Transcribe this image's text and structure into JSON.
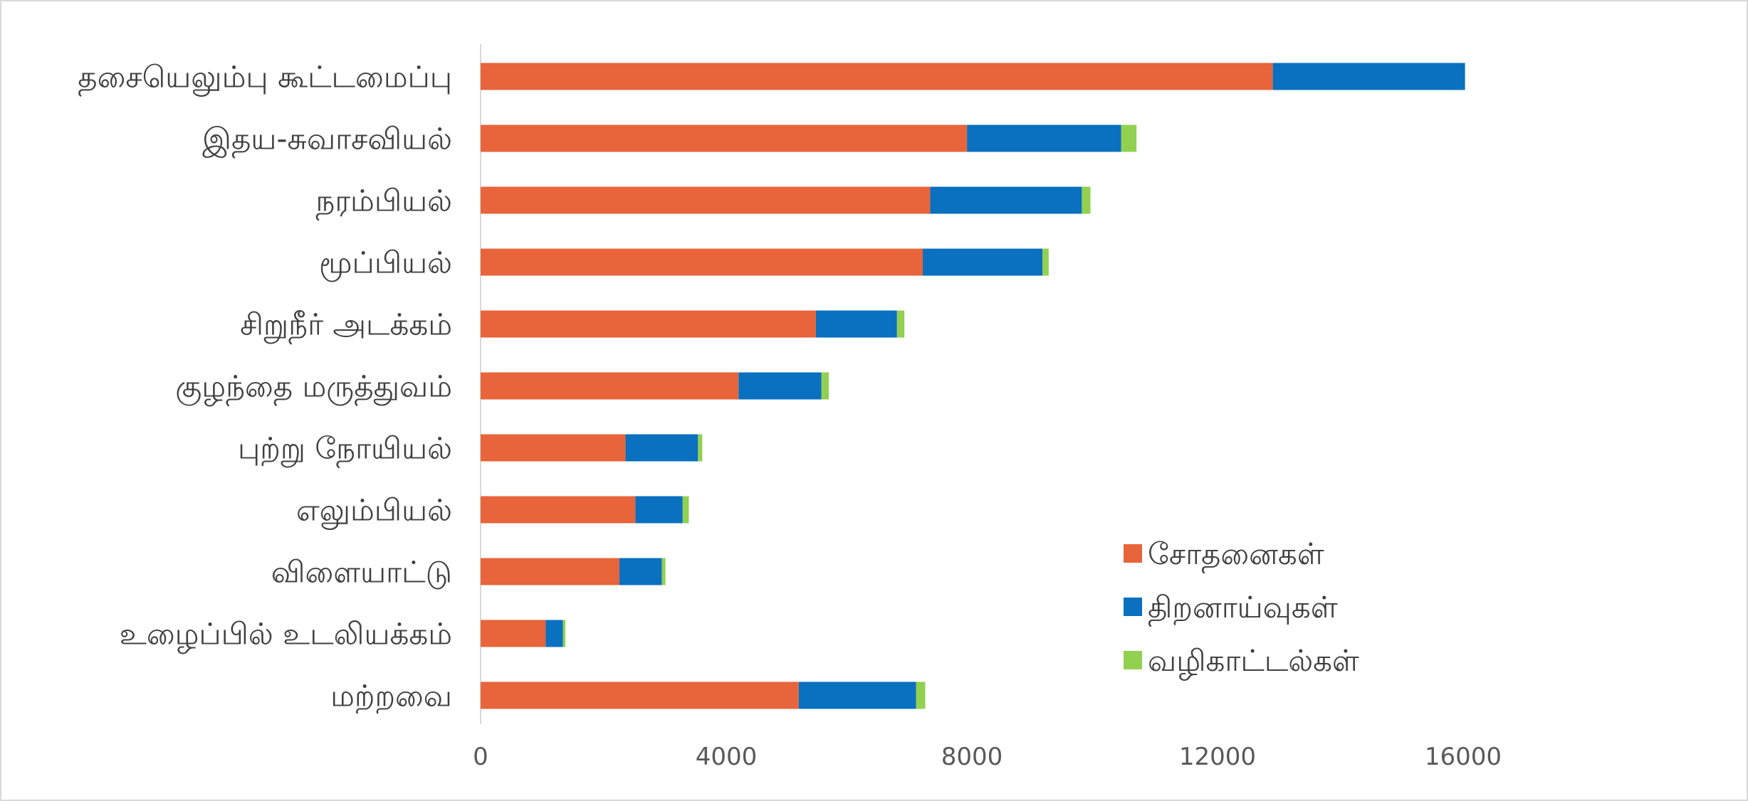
{
  "chart_data": {
    "type": "bar",
    "orientation": "horizontal",
    "stacked": true,
    "categories": [
      "தசையெலும்பு கூட்டமைப்பு",
      "இதய-சுவாசவியல்",
      "நரம்பியல்",
      "மூப்பியல்",
      "சிறுநீர் அடக்கம்",
      "குழந்தை மருத்துவம்",
      "புற்று நோயியல்",
      "எலும்பியல்",
      "விளையாட்டு",
      "உழைப்பில் உடலியக்கம்",
      "மற்றவை"
    ],
    "series": [
      {
        "name": "சோதனைகள்",
        "color": "#e8643a",
        "values": [
          12900,
          7920,
          7320,
          7200,
          5460,
          4200,
          2360,
          2520,
          2260,
          1060,
          5180
        ]
      },
      {
        "name": "திறனாய்வுகள்",
        "color": "#0a70c0",
        "values": [
          3130,
          2510,
          2470,
          1950,
          1320,
          1350,
          1180,
          770,
          690,
          280,
          1910
        ]
      },
      {
        "name": "வழிகாட்டல்கள்",
        "color": "#92d050",
        "values": [
          0,
          250,
          140,
          100,
          120,
          120,
          70,
          100,
          60,
          40,
          150
        ]
      }
    ],
    "x_ticks": [
      "0",
      "4000",
      "8000",
      "12000",
      "16000"
    ],
    "xlim": [
      0,
      16000
    ],
    "title": "",
    "xlabel": "",
    "ylabel": "",
    "grid": false,
    "legend_position": "bottom-right"
  }
}
